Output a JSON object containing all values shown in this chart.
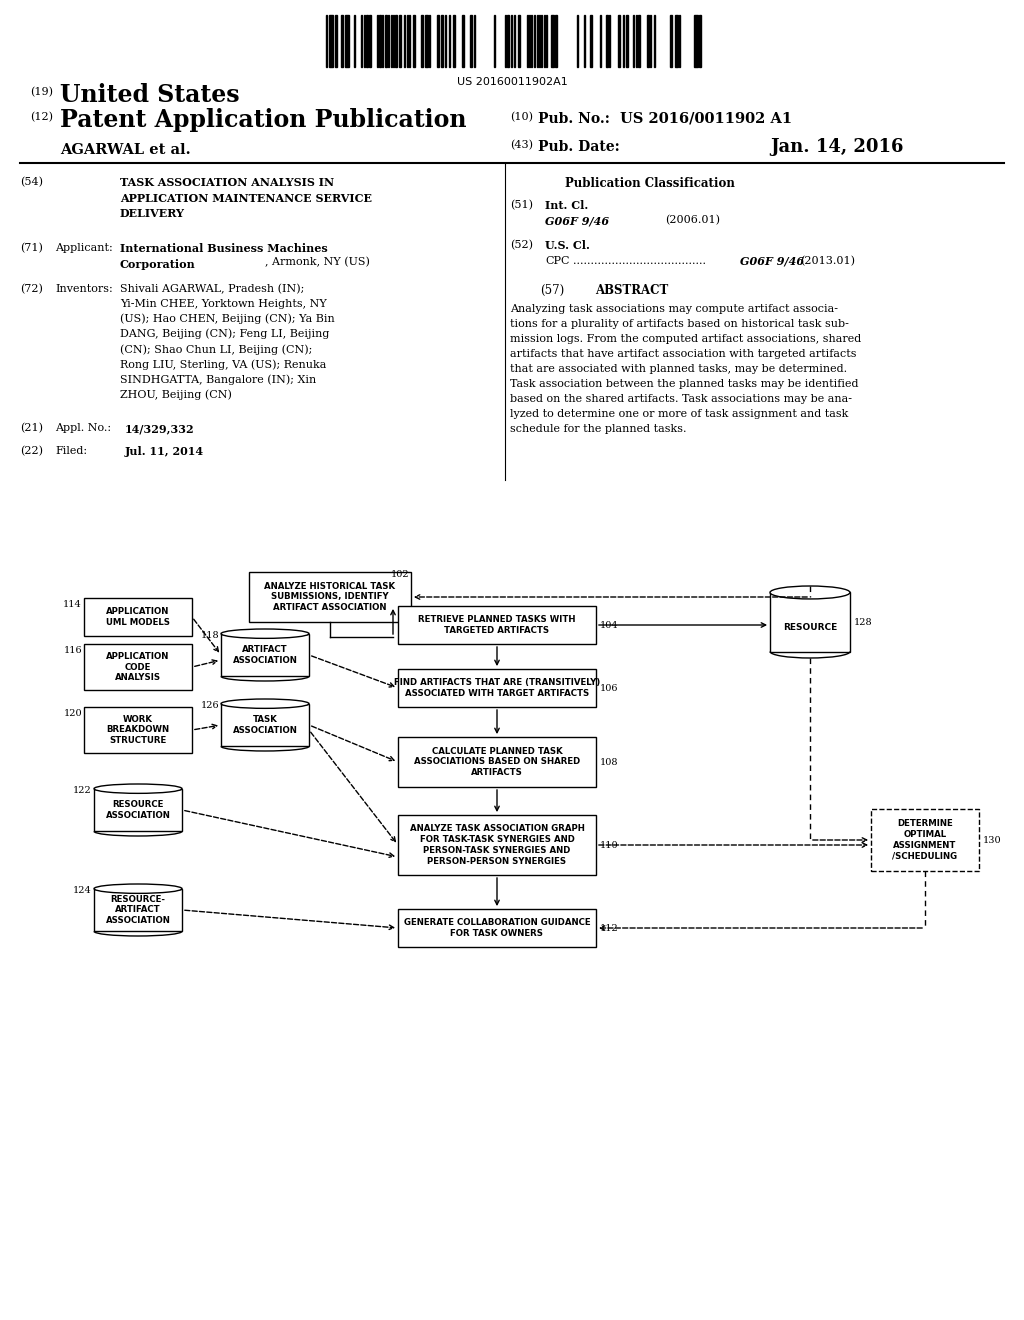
{
  "background_color": "#ffffff",
  "barcode_text": "US 20160011902A1",
  "header_line1_num": "(19)",
  "header_line1_text": "United States",
  "header_line2_num": "(12)",
  "header_line2_text": "Patent Application Publication",
  "header_right1_num": "(10)",
  "header_right1_text": "Pub. No.:",
  "header_right1_val": "US 2016/0011902 A1",
  "header_right2_num": "(43)",
  "header_right2_text": "Pub. Date:",
  "header_right2_date": "Jan. 14, 2016",
  "header_name": "AGARWAL et al.",
  "section54_num": "(54)",
  "section54_title": "TASK ASSOCIATION ANALYSIS IN\nAPPLICATION MAINTENANCE SERVICE\nDELIVERY",
  "section71_num": "(71)",
  "section71_label": "Applicant:",
  "section71_bold": "International Business Machines\nCorporation",
  "section71_rest": ", Armonk, NY (US)",
  "section72_num": "(72)",
  "section72_label": "Inventors:",
  "section72_text": "Shivali AGARWAL, Pradesh (IN);\nYi-Min CHEE, Yorktown Heights, NY\n(US); Hao CHEN, Beijing (CN); Ya Bin\nDANG, Beijing (CN); Feng LI, Beijing\n(CN); Shao Chun LI, Beijing (CN);\nRong LIU, Sterling, VA (US); Renuka\nSINDHGATTA, Bangalore (IN); Xin\nZHOU, Beijing (CN)",
  "section21_num": "(21)",
  "section21_label": "Appl. No.:",
  "section21_text": "14/329,332",
  "section22_num": "(22)",
  "section22_label": "Filed:",
  "section22_text": "Jul. 11, 2014",
  "pub_class_title": "Publication Classification",
  "section51_num": "(51)",
  "section51_label": "Int. Cl.",
  "section51_class": "G06F 9/46",
  "section51_year": "(2006.01)",
  "section52_num": "(52)",
  "section52_label": "U.S. Cl.",
  "section52_sub": "CPC",
  "section52_dots": "......................................",
  "section52_class": "G06F 9/46",
  "section52_year": "(2013.01)",
  "section57_num": "(57)",
  "section57_title": "ABSTRACT",
  "section57_text": "Analyzing task associations may compute artifact associa-\ntions for a plurality of artifacts based on historical task sub-\nmission logs. From the computed artifact associations, shared\nartifacts that have artifact association with targeted artifacts\nthat are associated with planned tasks, may be determined.\nTask association between the planned tasks may be identified\nbased on the shared artifacts. Task associations may be ana-\nlyzed to determine one or more of task assignment and task\nschedule for the planned tasks.",
  "node_102_label": "ANALYZE HISTORICAL TASK\nSUBMISSIONS, IDENTIFY\nARTIFACT ASSOCIATION",
  "node_114_label": "APPLICATION\nUML MODELS",
  "node_116_label": "APPLICATION\nCODE\nANALYSIS",
  "node_118_label": "ARTIFACT\nASSOCIATION",
  "node_120_label": "WORK\nBREAKDOWN\nSTRUCTURE",
  "node_126_label": "TASK\nASSOCIATION",
  "node_122_label": "RESOURCE\nASSOCIATION",
  "node_124_label": "RESOURCE-\nARTIFACT\nASSOCIATION",
  "node_104_label": "RETRIEVE PLANNED TASKS WITH\nTARGETED ARTIFACTS",
  "node_106_label": "FIND ARTIFACTS THAT ARE (TRANSITIVELY)\nASSOCIATED WITH TARGET ARTIFACTS",
  "node_108_label": "CALCULATE PLANNED TASK\nASSOCIATIONS BASED ON SHARED\nARTIFACTS",
  "node_110_label": "ANALYZE TASK ASSOCIATION GRAPH\nFOR TASK-TASK SYNERGIES AND\nPERSON-TASK SYNERGIES AND\nPERSON-PERSON SYNERGIES",
  "node_112_label": "GENERATE COLLABORATION GUIDANCE\nFOR TASK OWNERS",
  "node_128_label": "RESOURCE",
  "node_130_label": "DETERMINE\nOPTIMAL\nASSIGNMENT\n/SCHEDULING",
  "num_102": "102",
  "num_114": "114",
  "num_116": "116",
  "num_118": "118",
  "num_120": "120",
  "num_126": "126",
  "num_122": "122",
  "num_124": "124",
  "num_104": "104",
  "num_106": "106",
  "num_108": "108",
  "num_110": "110",
  "num_112": "112",
  "num_128": "128",
  "num_130": "130"
}
